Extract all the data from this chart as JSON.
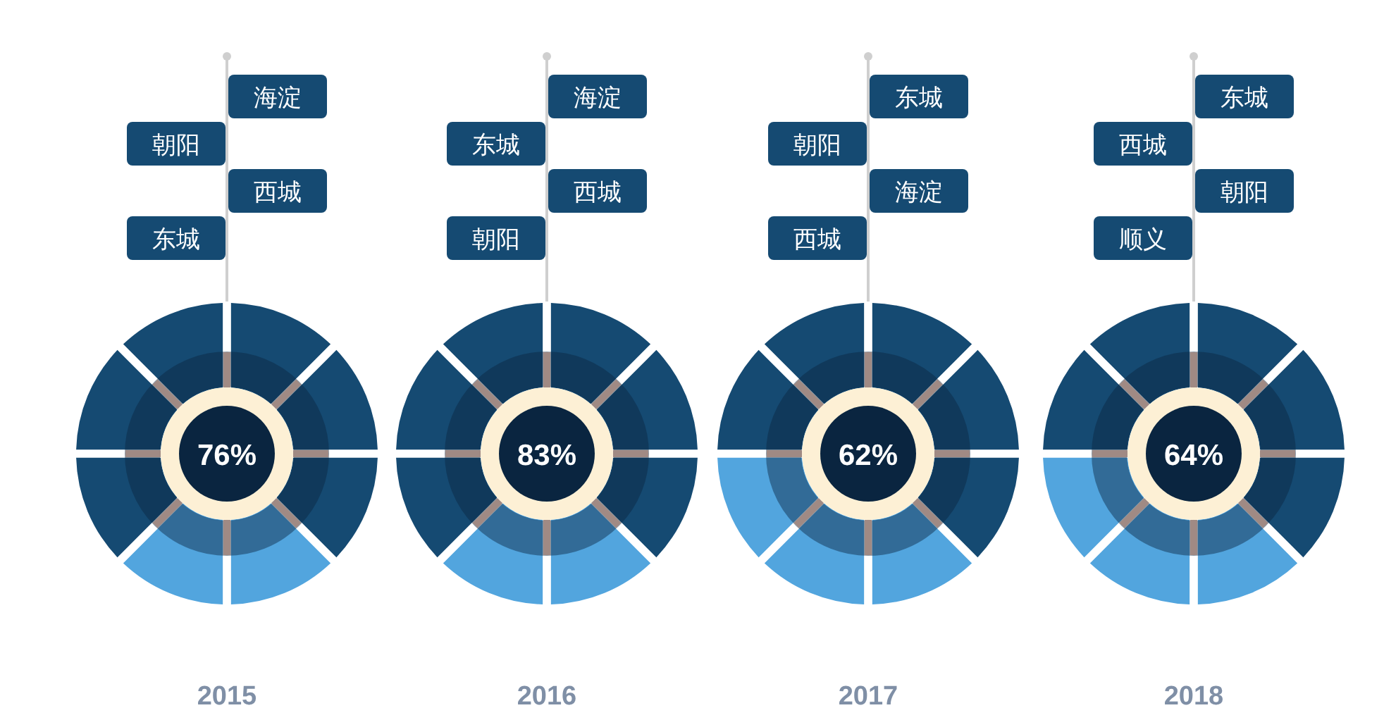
{
  "chart_data": [
    {
      "type": "donut",
      "title": "2015",
      "annotations": [
        "76%",
        "海淀",
        "朝阳",
        "西城",
        "东城"
      ],
      "categories": [
        null,
        null,
        null,
        null,
        null,
        null,
        null,
        null
      ],
      "values": [
        12.5,
        12.5,
        12.5,
        12.5,
        12.5,
        12.5,
        12.5,
        12.5
      ],
      "colors": [
        "#154a72",
        "#154a72",
        "#154a72",
        "#52a5de",
        "#52a5de",
        "#154a72",
        "#154a72",
        "#154a72"
      ]
    },
    {
      "type": "donut",
      "title": "2016",
      "annotations": [
        "83%",
        "海淀",
        "东城",
        "西城",
        "朝阳"
      ],
      "categories": [
        null,
        null,
        null,
        null,
        null,
        null,
        null,
        null
      ],
      "values": [
        12.5,
        12.5,
        12.5,
        12.5,
        12.5,
        12.5,
        12.5,
        12.5
      ],
      "colors": [
        "#154a72",
        "#154a72",
        "#154a72",
        "#52a5de",
        "#52a5de",
        "#154a72",
        "#154a72",
        "#154a72"
      ]
    },
    {
      "type": "donut",
      "title": "2017",
      "annotations": [
        "62%",
        "东城",
        "朝阳",
        "海淀",
        "西城"
      ],
      "categories": [
        null,
        null,
        null,
        null,
        null,
        null,
        null,
        null
      ],
      "values": [
        12.5,
        12.5,
        12.5,
        12.5,
        12.5,
        12.5,
        12.5,
        12.5
      ],
      "colors": [
        "#154a72",
        "#154a72",
        "#154a72",
        "#52a5de",
        "#52a5de",
        "#52a5de",
        "#154a72",
        "#154a72"
      ]
    },
    {
      "type": "donut",
      "title": "2018",
      "annotations": [
        "64%",
        "东城",
        "西城",
        "朝阳",
        "顺义"
      ],
      "categories": [
        null,
        null,
        null,
        null,
        null,
        null,
        null,
        null
      ],
      "values": [
        12.5,
        12.5,
        12.5,
        12.5,
        12.5,
        12.5,
        12.5,
        12.5
      ],
      "colors": [
        "#154a72",
        "#154a72",
        "#154a72",
        "#52a5de",
        "#52a5de",
        "#52a5de",
        "#154a72",
        "#154a72"
      ]
    }
  ]
}
